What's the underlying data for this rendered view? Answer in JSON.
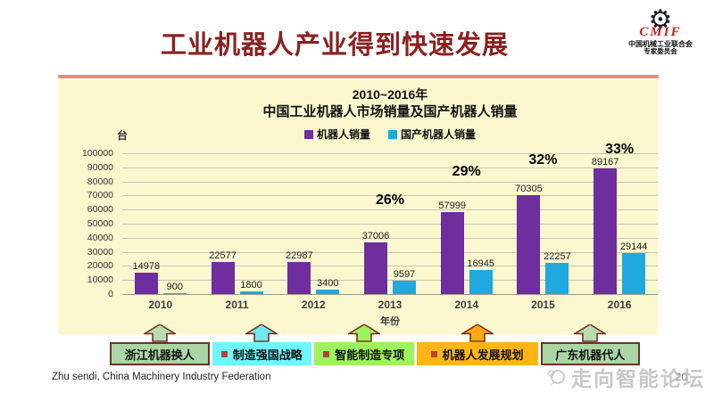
{
  "header": {
    "title": "工业机器人产业得到快速发展",
    "logo": {
      "acronym": "CMIF",
      "org_name": "中国机械工业联合会",
      "org_sub": "专家委员会"
    }
  },
  "chart_data": {
    "type": "bar",
    "title": "2010~2016年",
    "subtitle": "中国工业机器人市场销量及国产机器人销量",
    "unit_label": "台",
    "xlabel": "年份",
    "categories": [
      "2010",
      "2011",
      "2012",
      "2013",
      "2014",
      "2015",
      "2016"
    ],
    "series": [
      {
        "name": "机器人销量",
        "color": "#6E2E9E",
        "values": [
          14978,
          22577,
          22987,
          37006,
          57999,
          70305,
          89167
        ]
      },
      {
        "name": "国产机器人销量",
        "color": "#1FA9DE",
        "values": [
          900,
          1800,
          3400,
          9597,
          16945,
          22257,
          29144
        ]
      }
    ],
    "growth_labels": [
      "",
      "",
      "",
      "26%",
      "29%",
      "32%",
      "33%"
    ],
    "ylim": [
      0,
      100000
    ],
    "ytick_step": 10000,
    "grid": true,
    "legend_position": "top",
    "panel_bg": "#FBF7CF"
  },
  "policy_row": {
    "items": [
      {
        "label": "浙江机器换人",
        "fill": "#ABD5A5",
        "arrow_fill": "#B7DCAE",
        "bordered": true,
        "bullet": false
      },
      {
        "label": "制造强国战略",
        "fill": "#6FF7FF",
        "arrow_fill": "#6FE8F0",
        "bordered": false,
        "bullet": true
      },
      {
        "label": "智能制造专项",
        "fill": "#9DF25F",
        "arrow_fill": "#9DF25F",
        "bordered": false,
        "bullet": true
      },
      {
        "label": "机器人发展规划",
        "fill": "#FFB515",
        "arrow_fill": "#FFA815",
        "bordered": false,
        "bullet": true
      },
      {
        "label": "广东机器代人",
        "fill": "#ABD5A5",
        "arrow_fill": "#B7DCAE",
        "bordered": true,
        "bullet": false
      }
    ],
    "arrow_stroke": "#7A2E1E"
  },
  "footer": {
    "credit": "Zhu sendi, China Machinery Industry Federation",
    "watermark": "走向智能论坛",
    "page_number": "20"
  },
  "colors": {
    "title": "#8B2121",
    "divider": "#E59072"
  }
}
